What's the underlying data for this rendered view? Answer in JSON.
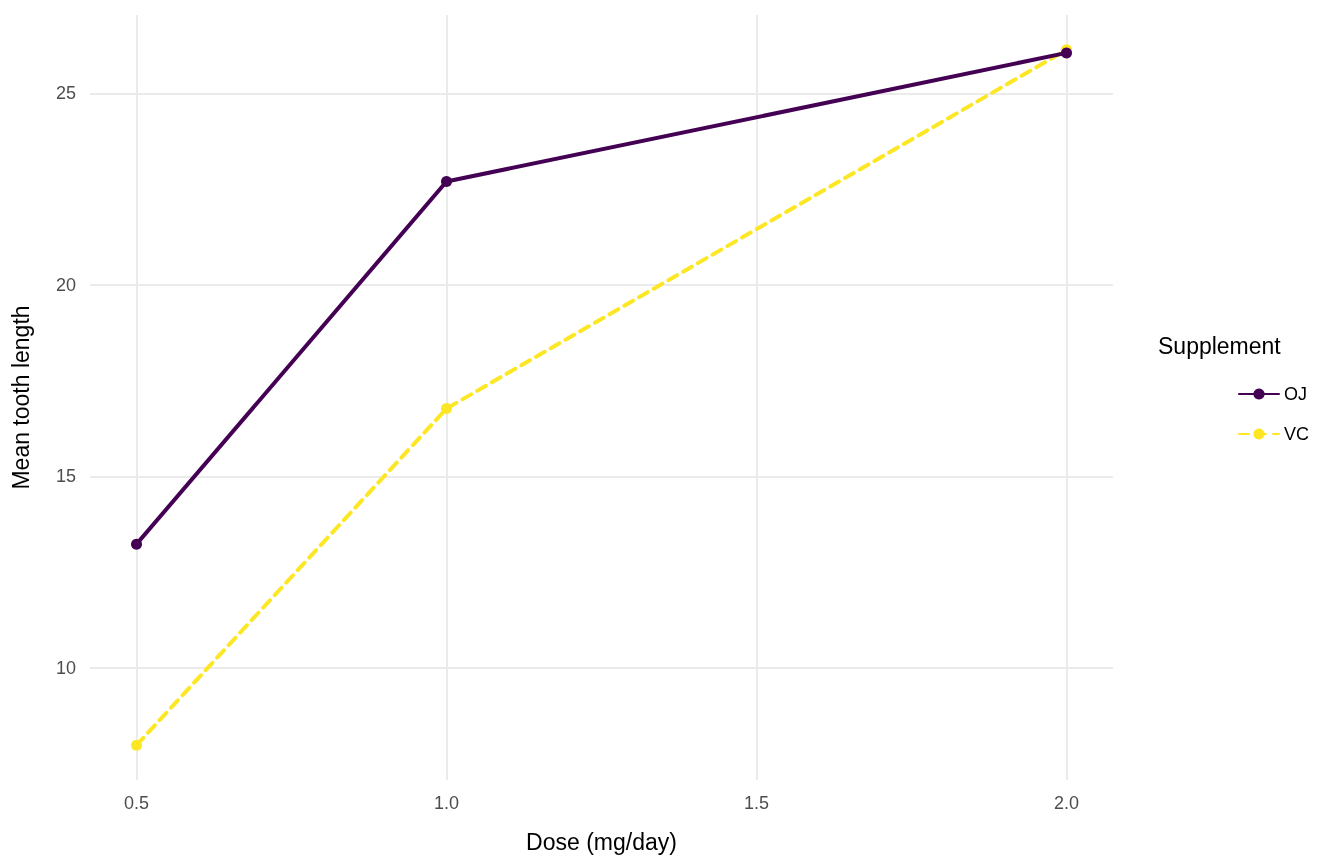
{
  "chart_data": {
    "type": "line",
    "xlabel": "Dose (mg/day)",
    "ylabel": "Mean tooth length",
    "legend_title": "Supplement",
    "x": [
      0.5,
      1,
      2
    ],
    "series": [
      {
        "name": "OJ",
        "color": "#440154",
        "values": [
          13.23,
          22.7,
          26.06
        ],
        "line_style": "solid"
      },
      {
        "name": "VC",
        "color": "#fde725",
        "values": [
          7.98,
          16.77,
          26.14
        ],
        "line_style": "dashed"
      }
    ],
    "xlim": [
      0.425,
      2.075
    ],
    "xticks": [
      0.5,
      {
        "value": 1,
        "label": "1.0"
      },
      1.5,
      {
        "value": 2,
        "label": "2.0"
      }
    ],
    "ylim": [
      7.07,
      27.05
    ],
    "yticks": [
      10,
      15,
      20,
      25
    ],
    "grid": true,
    "legend": "right",
    "marker": "circle"
  }
}
